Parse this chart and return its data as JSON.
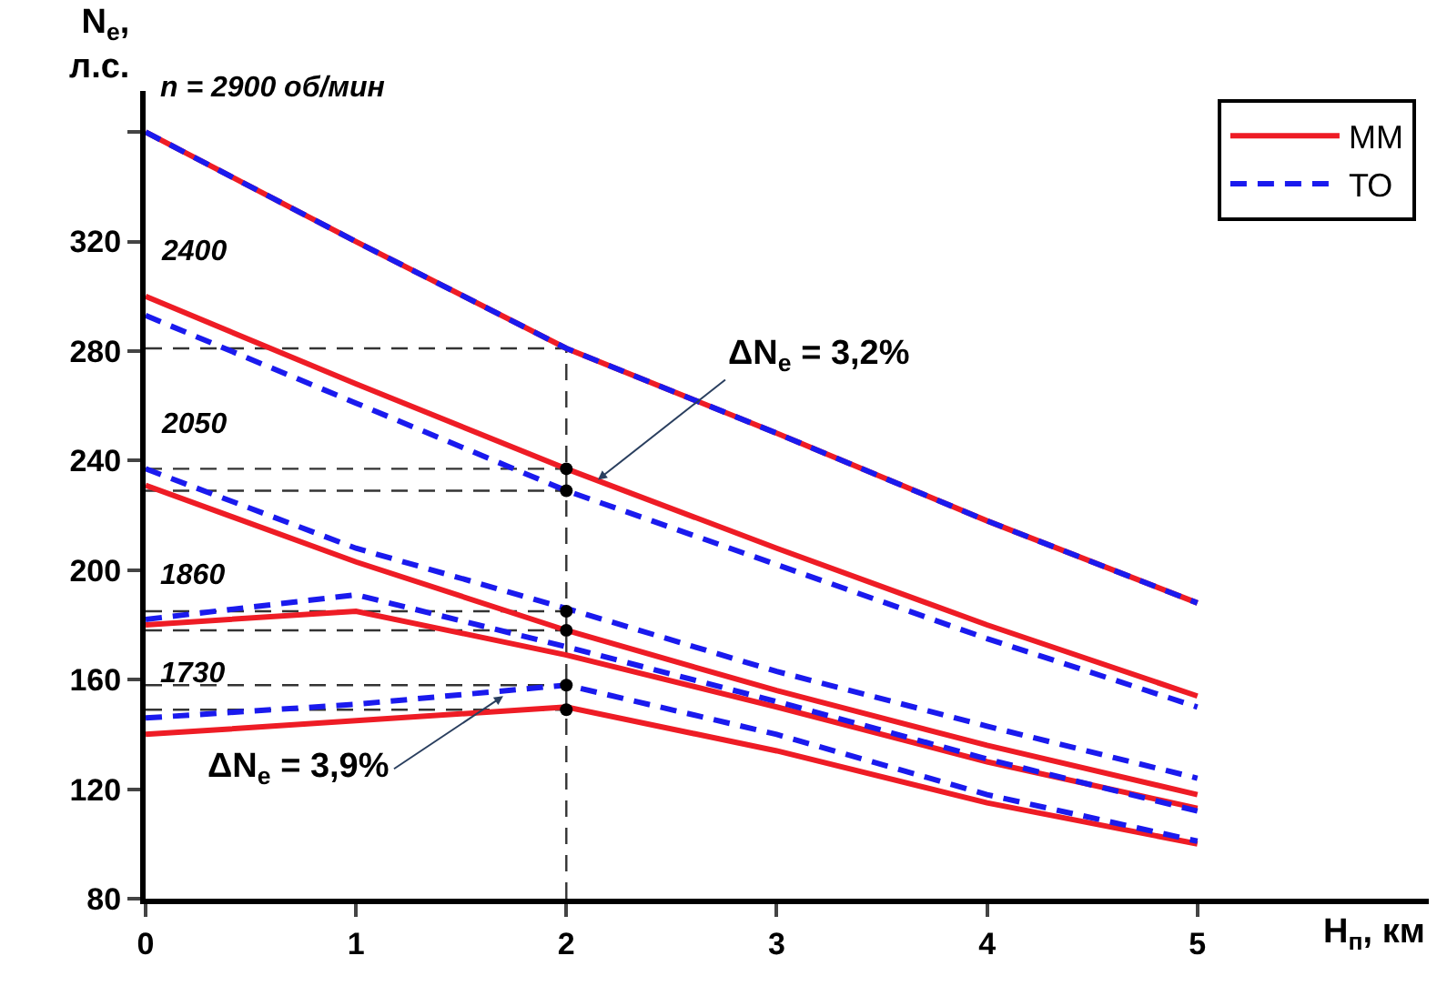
{
  "chart_data": {
    "type": "line",
    "xlabel": "H$_{п}$, км",
    "ylabel": "N$_{e}$,\nл.с.",
    "x": [
      0,
      1,
      2,
      3,
      4,
      5
    ],
    "series": [
      {
        "name": "ММ",
        "color": "#ee1c25",
        "line_style": "solid",
        "values": [
          360,
          320,
          281,
          250,
          218,
          188
        ]
      },
      {
        "name": "ТО",
        "color": "#1a1aee",
        "line_style": "dashed",
        "values": [
          360,
          320,
          281,
          250,
          218,
          188
        ]
      },
      {
        "color": "#ee1c25",
        "line_style": "solid",
        "values": [
          300,
          268,
          237,
          208,
          180,
          154
        ]
      },
      {
        "color": "#1a1aee",
        "line_style": "dashed",
        "values": [
          293,
          261,
          229,
          202,
          175,
          150
        ]
      },
      {
        "color": "#ee1c25",
        "line_style": "solid",
        "values": [
          231,
          203,
          178,
          156,
          136,
          118
        ]
      },
      {
        "color": "#1a1aee",
        "line_style": "dashed",
        "values": [
          237,
          208,
          186,
          163,
          143,
          124
        ]
      },
      {
        "color": "#ee1c25",
        "line_style": "solid",
        "values": [
          180,
          185,
          169,
          150,
          130,
          113
        ]
      },
      {
        "color": "#1a1aee",
        "line_style": "dashed",
        "values": [
          182,
          191,
          172,
          152,
          131,
          112
        ]
      },
      {
        "color": "#ee1c25",
        "line_style": "solid",
        "values": [
          140,
          145,
          150,
          134,
          115,
          100
        ]
      },
      {
        "color": "#1a1aee",
        "line_style": "dashed",
        "values": [
          146,
          151,
          158,
          140,
          118,
          101
        ]
      }
    ],
    "xlim": [
      0,
      6.1
    ],
    "ylim": [
      80,
      375
    ],
    "xticks": [
      0,
      1,
      2,
      3,
      4,
      5
    ],
    "yticks": [
      80,
      120,
      160,
      200,
      240,
      280,
      320,
      {
        "value": 360,
        "label": null
      }
    ],
    "grid": false,
    "legend": "top right",
    "marker": "none",
    "ref_lines": [
      {
        "axis": "x",
        "value": 2,
        "color": "#333333",
        "line_style": "dashed"
      },
      {
        "axis": "y",
        "value": 281,
        "color": "#333333",
        "line_style": "dashed"
      },
      {
        "axis": "y",
        "value": 237,
        "color": "#333333",
        "line_style": "dashed"
      },
      {
        "axis": "y",
        "value": 229,
        "color": "#333333",
        "line_style": "dashed"
      },
      {
        "axis": "y",
        "value": 185,
        "color": "#333333",
        "line_style": "dashed"
      },
      {
        "axis": "y",
        "value": 178,
        "color": "#333333",
        "line_style": "dashed"
      },
      {
        "axis": "y",
        "value": 158,
        "color": "#333333",
        "line_style": "dashed"
      },
      {
        "axis": "y",
        "value": 149,
        "color": "#333333",
        "line_style": "dashed"
      }
    ],
    "annotations": [
      "n = 2900 об/мин",
      "2400",
      "2050",
      "1860",
      "1730",
      {
        "text": "ΔN$_{e}$ = 3,2%",
        "x": 2.15,
        "y": 233
      },
      {
        "text": "ΔN$_{e}$ = 3,9%",
        "x": 1.7,
        "y": 154
      }
    ]
  }
}
